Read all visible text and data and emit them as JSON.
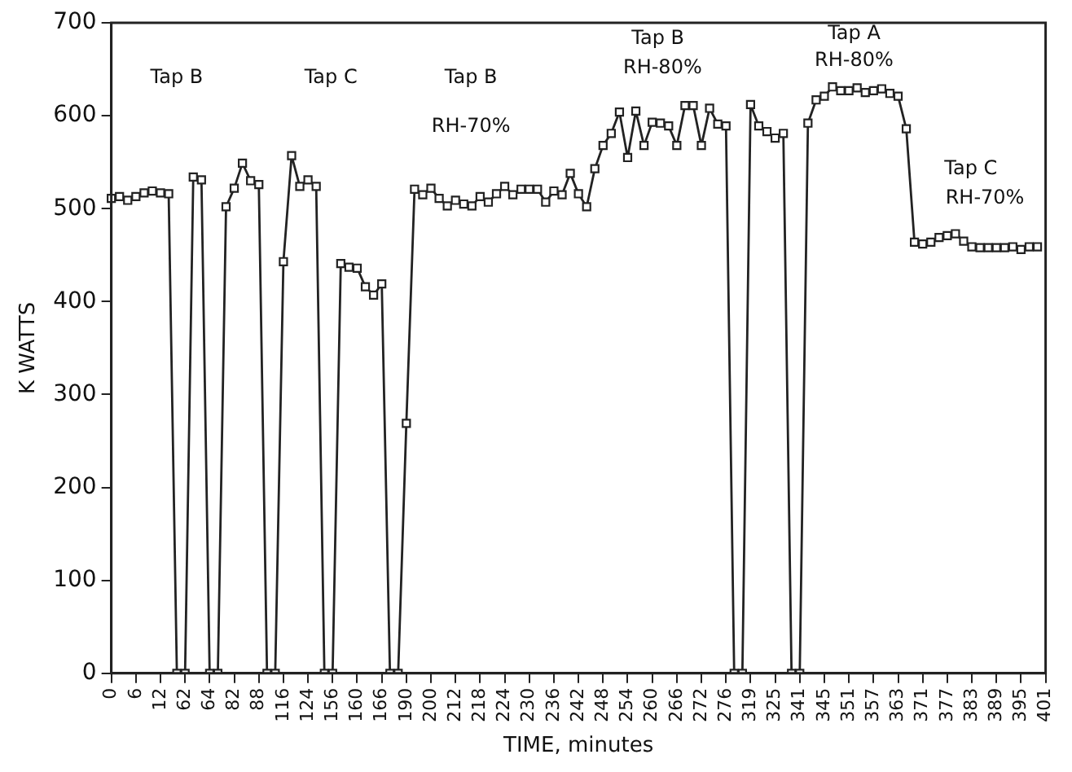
{
  "chart_data": {
    "type": "line",
    "xlabel": "TIME, minutes",
    "ylabel": "K WATTS",
    "categories": [
      "0",
      null,
      null,
      "6",
      null,
      null,
      "12",
      null,
      null,
      "62",
      null,
      null,
      "64",
      null,
      null,
      "82",
      null,
      null,
      "88",
      null,
      null,
      "116",
      null,
      null,
      "124",
      null,
      null,
      "156",
      null,
      null,
      "160",
      null,
      null,
      "166",
      null,
      null,
      "190",
      null,
      null,
      "200",
      null,
      null,
      "212",
      null,
      null,
      "218",
      null,
      null,
      "224",
      null,
      null,
      "230",
      null,
      null,
      "236",
      null,
      null,
      "242",
      null,
      null,
      "248",
      null,
      null,
      "254",
      null,
      null,
      "260",
      null,
      null,
      "266",
      null,
      null,
      "272",
      null,
      null,
      "276",
      null,
      null,
      "319",
      null,
      null,
      "325",
      null,
      null,
      "341",
      null,
      null,
      "345",
      null,
      null,
      "351",
      null,
      null,
      "357",
      null,
      null,
      "363",
      null,
      null,
      "371",
      null,
      null,
      "377",
      null,
      null,
      "383",
      null,
      null,
      "389",
      null,
      null,
      "395",
      null,
      null,
      "401"
    ],
    "ylim": [
      0,
      700
    ],
    "yticks": [
      0,
      100,
      200,
      300,
      400,
      500,
      600,
      700
    ],
    "grid": false,
    "legend": false,
    "marker": "square",
    "line_style": "solid",
    "series": [
      {
        "color": "#222222",
        "values": [
          511,
          513,
          509,
          513,
          517,
          519,
          517,
          516,
          0,
          0,
          534,
          531,
          0,
          0,
          502,
          522,
          549,
          530,
          526,
          0,
          0,
          443,
          557,
          524,
          531,
          524,
          0,
          0,
          441,
          437,
          436,
          416,
          407,
          419,
          0,
          0,
          269,
          521,
          515,
          522,
          511,
          503,
          509,
          505,
          503,
          513,
          507,
          516,
          524,
          515,
          521,
          521,
          521,
          507,
          519,
          515,
          538,
          516,
          502,
          543,
          568,
          581,
          604,
          555,
          605,
          568,
          593,
          592,
          589,
          568,
          611,
          611,
          568,
          608,
          591,
          589,
          0,
          0,
          612,
          589,
          583,
          576,
          581,
          0,
          0,
          592,
          617,
          621,
          631,
          627,
          627,
          630,
          625,
          627,
          629,
          624,
          621,
          586,
          464,
          462,
          464,
          469,
          471,
          473,
          465,
          459,
          458,
          458,
          458,
          458,
          459,
          456,
          459,
          459,
          null
        ]
      }
    ],
    "annotations": [
      "Tap B",
      "Tap C",
      "Tap B",
      "RH-70%",
      "Tap B",
      "RH-80%",
      "Tap A",
      "RH-80%",
      "Tap C",
      "RH-70%"
    ]
  }
}
